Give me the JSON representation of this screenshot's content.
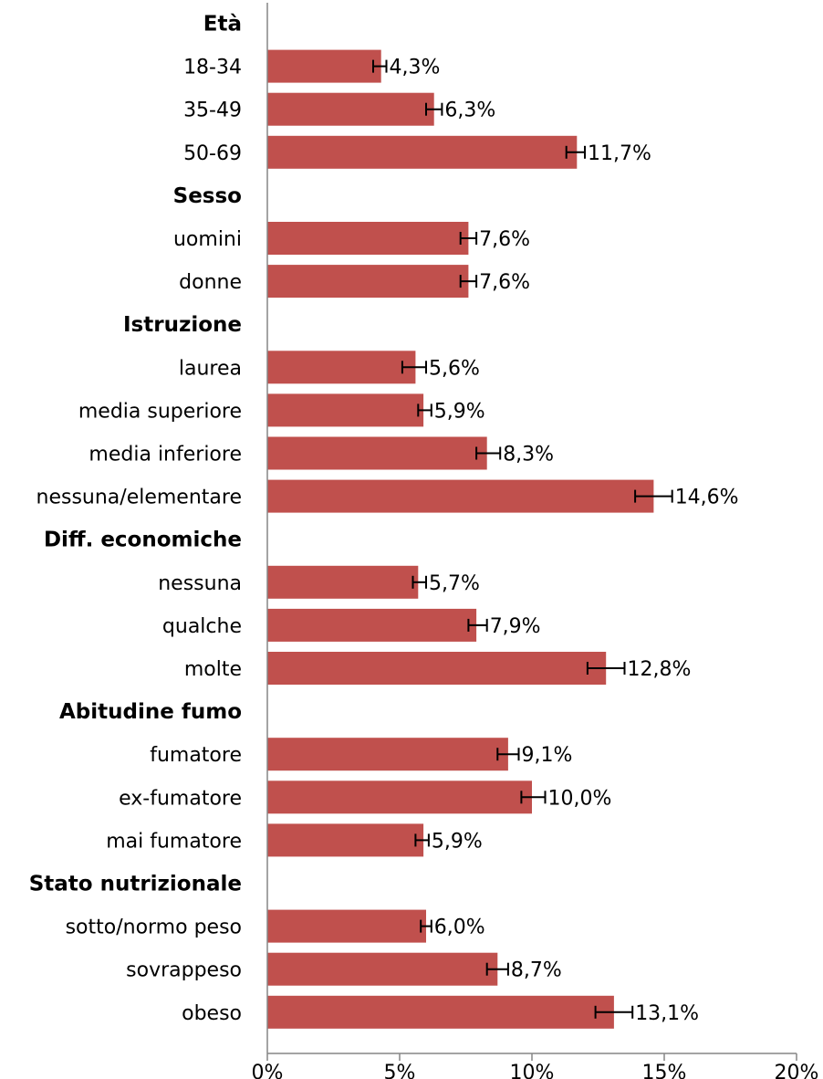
{
  "chart_data": {
    "type": "bar",
    "orientation": "horizontal",
    "bar_color": "#c0504d",
    "error_bar_color": "#000000",
    "xlim": [
      0,
      20
    ],
    "xticks": [
      "0%",
      "5%",
      "10%",
      "15%",
      "20%"
    ],
    "groups": [
      {
        "label": "Età",
        "items": [
          {
            "category": "18-34",
            "value": 4.3,
            "label": "4,3%",
            "err_low": 4.0,
            "err_high": 4.5
          },
          {
            "category": "35-49",
            "value": 6.3,
            "label": "6,3%",
            "err_low": 6.0,
            "err_high": 6.6
          },
          {
            "category": "50-69",
            "value": 11.7,
            "label": "11,7%",
            "err_low": 11.3,
            "err_high": 12.0
          }
        ]
      },
      {
        "label": "Sesso",
        "items": [
          {
            "category": "uomini",
            "value": 7.6,
            "label": "7,6%",
            "err_low": 7.3,
            "err_high": 7.9
          },
          {
            "category": "donne",
            "value": 7.6,
            "label": "7,6%",
            "err_low": 7.3,
            "err_high": 7.9
          }
        ]
      },
      {
        "label": "Istruzione",
        "items": [
          {
            "category": "laurea",
            "value": 5.6,
            "label": "5,6%",
            "err_low": 5.1,
            "err_high": 6.0
          },
          {
            "category": "media superiore",
            "value": 5.9,
            "label": "5,9%",
            "err_low": 5.7,
            "err_high": 6.2
          },
          {
            "category": "media inferiore",
            "value": 8.3,
            "label": "8,3%",
            "err_low": 7.9,
            "err_high": 8.8
          },
          {
            "category": "nessuna/elementare",
            "value": 14.6,
            "label": "14,6%",
            "err_low": 13.9,
            "err_high": 15.3
          }
        ]
      },
      {
        "label": "Diff. economiche",
        "items": [
          {
            "category": "nessuna",
            "value": 5.7,
            "label": "5,7%",
            "err_low": 5.5,
            "err_high": 6.0
          },
          {
            "category": "qualche",
            "value": 7.9,
            "label": "7,9%",
            "err_low": 7.6,
            "err_high": 8.3
          },
          {
            "category": "molte",
            "value": 12.8,
            "label": "12,8%",
            "err_low": 12.1,
            "err_high": 13.5
          }
        ]
      },
      {
        "label": "Abitudine fumo",
        "items": [
          {
            "category": "fumatore",
            "value": 9.1,
            "label": "9,1%",
            "err_low": 8.7,
            "err_high": 9.5
          },
          {
            "category": "ex-fumatore",
            "value": 10.0,
            "label": "10,0%",
            "err_low": 9.6,
            "err_high": 10.5
          },
          {
            "category": "mai fumatore",
            "value": 5.9,
            "label": "5,9%",
            "err_low": 5.6,
            "err_high": 6.1
          }
        ]
      },
      {
        "label": "Stato nutrizionale",
        "items": [
          {
            "category": "sotto/normo peso",
            "value": 6.0,
            "label": "6,0%",
            "err_low": 5.8,
            "err_high": 6.2
          },
          {
            "category": "sovrappeso",
            "value": 8.7,
            "label": "8,7%",
            "err_low": 8.3,
            "err_high": 9.1
          },
          {
            "category": "obeso",
            "value": 13.1,
            "label": "13,1%",
            "err_low": 12.4,
            "err_high": 13.8
          }
        ]
      }
    ]
  }
}
